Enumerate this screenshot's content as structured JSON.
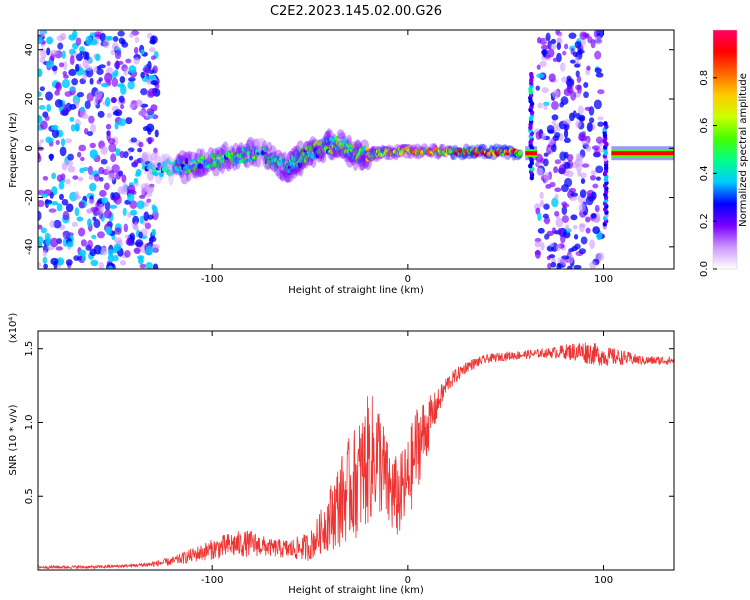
{
  "title": "C2E2.2023.145.02.00.G26",
  "colors": {
    "snr_line": "#ee3333",
    "frame": "#000000",
    "colorbar": [
      "#ffffff",
      "#cc99ff",
      "#7a00ff",
      "#0000ff",
      "#00ccff",
      "#00ff88",
      "#44ff00",
      "#ccff00",
      "#ffcc00",
      "#ff6600",
      "#ff0000",
      "#ff0066"
    ]
  },
  "chart_data": [
    {
      "type": "heatmap",
      "title": "C2E2.2023.145.02.00.G26",
      "xlabel": "Height of straight line (km)",
      "ylabel": "Frequency (Hz)",
      "xlim": [
        -189,
        136
      ],
      "ylim": [
        -49,
        48
      ],
      "xticks": [
        -100,
        0,
        100
      ],
      "xtick_labels": [
        "-100",
        "0",
        "100"
      ],
      "yticks": [
        -40,
        -20,
        0,
        20,
        40
      ],
      "ytick_labels": [
        "-40",
        "-20",
        "0",
        "20",
        "40"
      ],
      "colorbar": {
        "label": "Normalized spectral amplitude",
        "range": [
          0,
          1
        ],
        "ticks": [
          0.0,
          0.2,
          0.4,
          0.6,
          0.8
        ],
        "tick_labels": [
          "0.0",
          "0.2",
          "0.4",
          "0.6",
          "0.8"
        ]
      },
      "features": [
        {
          "kind": "noise",
          "x_range": [
            -189,
            -128
          ],
          "y_range": [
            -49,
            48
          ],
          "level": 0.25
        },
        {
          "kind": "ridge",
          "x": [
            -135,
            -120,
            -105,
            -90,
            -75,
            -62,
            -55,
            -45,
            -35,
            -25,
            -15,
            0,
            20,
            40,
            58
          ],
          "y": [
            -8,
            -8,
            -6,
            -4,
            -2,
            -8,
            -4,
            0,
            2,
            -3,
            -2,
            -1,
            -1.5,
            -1.5,
            -2
          ],
          "level": [
            0.35,
            0.45,
            0.5,
            0.5,
            0.45,
            0.5,
            0.5,
            0.5,
            0.55,
            0.6,
            0.65,
            0.7,
            0.75,
            0.85,
            0.95
          ]
        },
        {
          "kind": "spike",
          "x": 63,
          "y_range": [
            -12,
            30
          ],
          "level": 0.3
        },
        {
          "kind": "noise",
          "x_range": [
            66,
            99
          ],
          "y_range": [
            -49,
            48
          ],
          "level": 0.2
        },
        {
          "kind": "spike",
          "x": 101,
          "y_range": [
            -32,
            10
          ],
          "level": 0.25
        },
        {
          "kind": "band",
          "x_range": [
            60,
            66
          ],
          "y": -2,
          "level": 0.9
        },
        {
          "kind": "band",
          "x_range": [
            104,
            136
          ],
          "y": -2,
          "level": 0.95
        }
      ]
    },
    {
      "type": "line",
      "xlabel": "Height of straight line (km)",
      "ylabel": "SNR (10 * v/v)",
      "y_exponent_label": "(x10⁴)",
      "xlim": [
        -189,
        136
      ],
      "ylim": [
        0,
        1.62
      ],
      "xticks": [
        -100,
        0,
        100
      ],
      "xtick_labels": [
        "-100",
        "0",
        "100"
      ],
      "yticks": [
        0.5,
        1.0,
        1.5
      ],
      "ytick_labels": [
        "0.5",
        "1.0",
        "1.5"
      ],
      "series": [
        {
          "x": [
            -189,
            -160,
            -140,
            -130,
            -120,
            -110,
            -100,
            -90,
            -80,
            -70,
            -60,
            -50,
            -45,
            -40,
            -35,
            -30,
            -25,
            -20,
            -15,
            -10,
            -5,
            0,
            5,
            10,
            15,
            20,
            30,
            40,
            50,
            60,
            70,
            80,
            90,
            100,
            110,
            120,
            136
          ],
          "y": [
            0.02,
            0.02,
            0.03,
            0.04,
            0.06,
            0.1,
            0.14,
            0.17,
            0.18,
            0.15,
            0.14,
            0.16,
            0.25,
            0.35,
            0.45,
            0.55,
            0.62,
            0.75,
            0.78,
            0.55,
            0.48,
            0.6,
            0.85,
            0.97,
            1.12,
            1.26,
            1.38,
            1.43,
            1.45,
            1.46,
            1.47,
            1.48,
            1.48,
            1.45,
            1.44,
            1.42,
            1.42
          ],
          "amp": [
            0.01,
            0.01,
            0.01,
            0.02,
            0.03,
            0.05,
            0.07,
            0.09,
            0.09,
            0.06,
            0.07,
            0.1,
            0.14,
            0.22,
            0.3,
            0.35,
            0.4,
            0.45,
            0.4,
            0.3,
            0.28,
            0.3,
            0.3,
            0.2,
            0.1,
            0.06,
            0.04,
            0.03,
            0.03,
            0.03,
            0.03,
            0.05,
            0.08,
            0.07,
            0.05,
            0.03,
            0.03
          ]
        }
      ]
    }
  ]
}
